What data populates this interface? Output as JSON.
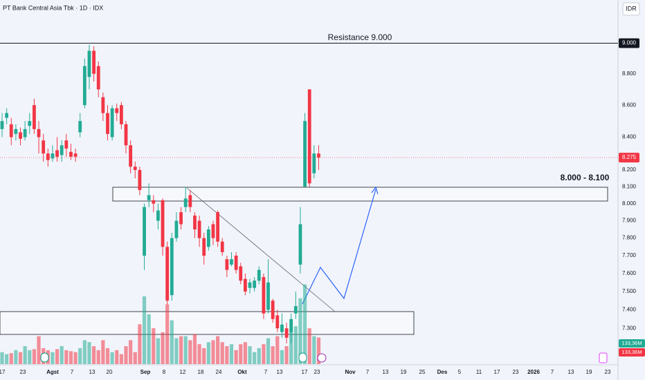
{
  "chart_data": {
    "type": "candlestick",
    "title": "PT Bank Central Asia Tbk · 1D · IDX",
    "currency": "IDR",
    "log_scale": true,
    "grid": false,
    "up_color": "#22ab94",
    "down_color": "#f23645",
    "ylim": [
      7100,
      9290
    ],
    "yticks": [
      {
        "value": 7300,
        "label": "7.300"
      },
      {
        "value": 7400,
        "label": "7.400"
      },
      {
        "value": 7500,
        "label": "7.500"
      },
      {
        "value": 7600,
        "label": "7.600"
      },
      {
        "value": 7700,
        "label": "7.700"
      },
      {
        "value": 7800,
        "label": "7.800"
      },
      {
        "value": 7900,
        "label": "7.900"
      },
      {
        "value": 8000,
        "label": "8.000"
      },
      {
        "value": 8100,
        "label": "8.100"
      },
      {
        "value": 8200,
        "label": "8.200"
      },
      {
        "value": 8400,
        "label": "8.400"
      },
      {
        "value": 8600,
        "label": "8.600"
      },
      {
        "value": 8800,
        "label": "8.800"
      },
      {
        "value": 9000,
        "label": "9.000"
      }
    ],
    "x_labels": [
      "17",
      "23",
      "Agst",
      "7",
      "13",
      "20",
      "Sep",
      "8",
      "12",
      "18",
      "24",
      "Okt",
      "7",
      "13",
      "17",
      "23",
      "Nov",
      "7",
      "13",
      "19",
      "25",
      "Des",
      "5",
      "11",
      "17",
      "23",
      "2026",
      "7",
      "13",
      "19",
      "23"
    ],
    "open": [
      8450,
      8520,
      8480,
      8420,
      8430,
      8400,
      8470,
      8600,
      8450,
      8380,
      8300,
      8270,
      8320,
      8290,
      8380,
      8310,
      8300,
      8430,
      8600,
      8780,
      8950,
      8850,
      8650,
      8550,
      8400,
      8580,
      8600,
      8480,
      8350,
      8220,
      8200,
      7700,
      8020,
      8020,
      7900,
      8020,
      7750,
      7480,
      7800,
      7950,
      7980,
      8050,
      7930,
      7900,
      7800,
      7750,
      7880,
      7950,
      7780,
      7680,
      7650,
      7700,
      7640,
      7570,
      7520,
      7520,
      7560,
      7580,
      7400,
      7450,
      7370,
      7280,
      7300,
      7280,
      7380,
      7650,
      8100,
      8700,
      8180,
      8300
    ],
    "high": [
      8550,
      8580,
      8520,
      8480,
      8460,
      8500,
      8550,
      8640,
      8500,
      8420,
      8330,
      8350,
      8400,
      8380,
      8420,
      8360,
      8330,
      8550,
      8900,
      8990,
      8980,
      8880,
      8680,
      8600,
      8600,
      8610,
      8620,
      8500,
      8380,
      8250,
      8220,
      8000,
      8120,
      8050,
      8000,
      8030,
      7780,
      7830,
      7950,
      7980,
      8100,
      8080,
      7950,
      7930,
      7830,
      7870,
      7900,
      7960,
      7800,
      7700,
      7720,
      7720,
      7660,
      7600,
      7570,
      7580,
      7640,
      7600,
      7680,
      7460,
      7400,
      7380,
      7330,
      7380,
      7500,
      7980,
      8550,
      8700,
      8350,
      8350
    ],
    "low": [
      8400,
      8480,
      8350,
      8380,
      8350,
      8380,
      8420,
      8420,
      8300,
      8250,
      8220,
      8250,
      8250,
      8250,
      8280,
      8260,
      8250,
      8400,
      8580,
      8700,
      8750,
      8650,
      8500,
      8380,
      8380,
      8500,
      8450,
      8300,
      8180,
      8150,
      8050,
      7620,
      7980,
      7950,
      7850,
      7700,
      7430,
      7450,
      7780,
      7850,
      7950,
      7950,
      7800,
      7750,
      7650,
      7730,
      7760,
      7750,
      7700,
      7580,
      7640,
      7600,
      7540,
      7480,
      7490,
      7500,
      7540,
      7350,
      7380,
      7330,
      7280,
      7250,
      7220,
      7220,
      7350,
      7600,
      8100,
      8100,
      8150,
      8200
    ],
    "close": [
      8500,
      8550,
      8400,
      8450,
      8390,
      8450,
      8500,
      8450,
      8400,
      8300,
      8260,
      8300,
      8280,
      8350,
      8330,
      8280,
      8280,
      8500,
      8850,
      8950,
      8800,
      8700,
      8550,
      8420,
      8580,
      8550,
      8480,
      8350,
      8220,
      8200,
      8080,
      7980,
      8050,
      8000,
      7960,
      7750,
      7450,
      7800,
      7900,
      7880,
      8030,
      7980,
      7850,
      7800,
      7700,
      7850,
      7800,
      7780,
      7720,
      7620,
      7680,
      7620,
      7560,
      7500,
      7550,
      7560,
      7620,
      7380,
      7550,
      7350,
      7300,
      7320,
      7250,
      7350,
      7420,
      7880,
      8500,
      8120,
      8300,
      8275
    ],
    "volume": [
      60,
      50,
      55,
      70,
      60,
      90,
      70,
      75,
      140,
      80,
      70,
      60,
      75,
      90,
      70,
      65,
      60,
      80,
      120,
      110,
      90,
      70,
      120,
      80,
      60,
      70,
      50,
      90,
      120,
      60,
      200,
      340,
      250,
      180,
      130,
      160,
      300,
      220,
      130,
      140,
      140,
      120,
      150,
      100,
      80,
      110,
      120,
      140,
      110,
      90,
      100,
      70,
      100,
      110,
      90,
      60,
      80,
      100,
      130,
      90,
      140,
      70,
      90,
      170,
      190,
      330,
      400,
      180,
      140,
      133.36
    ],
    "y2lim": [
      0,
      520
    ],
    "last_price_label": "8.275",
    "volume_label": "133,36M",
    "annotations": [
      "Resistance  9.000",
      "8.000 - 8.100"
    ]
  }
}
